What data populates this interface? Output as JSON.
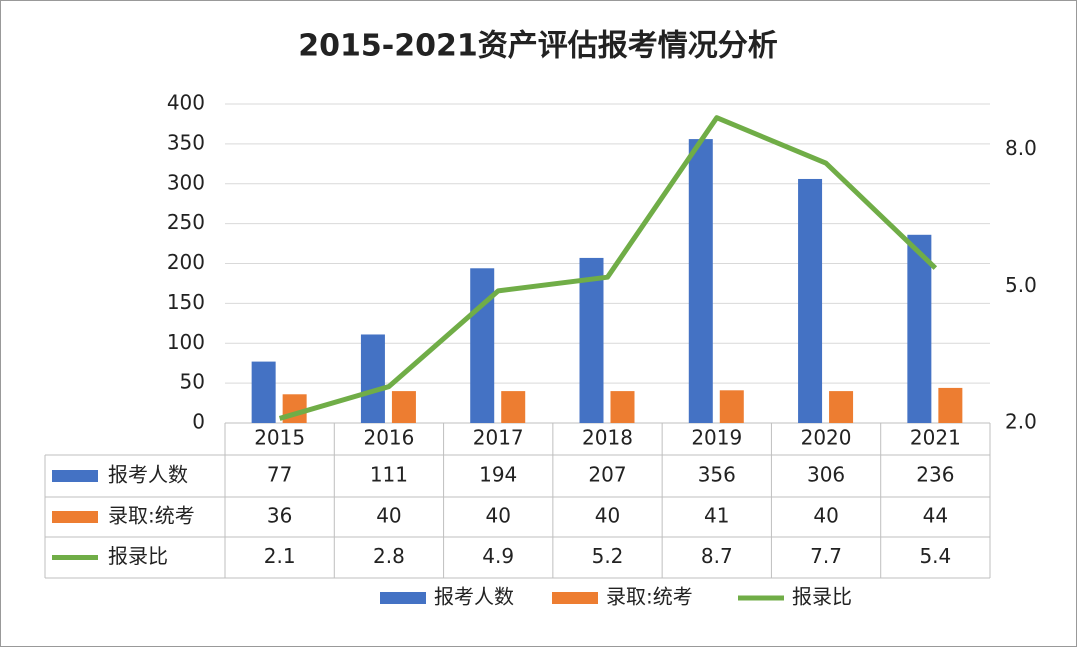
{
  "chart_data": {
    "type": "bar",
    "title": "2015-2021资产评估报考情况分析",
    "categories": [
      "2015",
      "2016",
      "2017",
      "2018",
      "2019",
      "2020",
      "2021"
    ],
    "series": [
      {
        "name": "报考人数",
        "color": "#4472c4",
        "values": [
          77,
          111,
          194,
          207,
          356,
          306,
          236
        ]
      },
      {
        "name": "录取:统考",
        "color": "#ed7d31",
        "values": [
          36,
          40,
          40,
          40,
          41,
          40,
          44
        ]
      },
      {
        "name": "报录比",
        "color": "#70ad47",
        "type": "line",
        "axis": "y2",
        "values": [
          2.1,
          2.8,
          4.9,
          5.2,
          8.7,
          7.7,
          5.4
        ]
      }
    ],
    "ylim": [
      0,
      400
    ],
    "yticks": [
      0,
      50,
      100,
      150,
      200,
      250,
      300,
      350,
      400
    ],
    "y2lim": [
      2,
      9
    ],
    "y2ticks": [
      {
        "value": 2,
        "label": "2.0"
      },
      {
        "value": 5,
        "label": "5.0"
      },
      {
        "value": 8,
        "label": "8.0"
      }
    ],
    "grid": true,
    "legend": "bottom"
  }
}
